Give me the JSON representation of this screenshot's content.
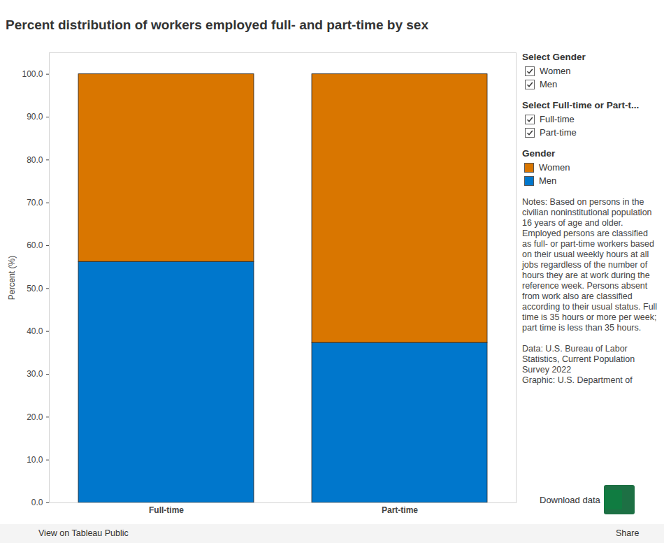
{
  "chart_data": {
    "type": "bar",
    "stacked": true,
    "title": "Percent distribution of workers employed full- and part-time by sex",
    "y_label": "Percent (%)",
    "categories": [
      "Full-time",
      "Part-time"
    ],
    "series": [
      {
        "name": "Women",
        "color": "#d97600",
        "values": [
          43.8,
          62.7
        ]
      },
      {
        "name": "Men",
        "color": "#0077cc",
        "values": [
          56.2,
          37.3
        ]
      }
    ],
    "ylim": [
      0,
      105
    ],
    "yticks": [
      {
        "value": 0,
        "label": "0.0"
      },
      {
        "value": 10,
        "label": "10.0"
      },
      {
        "value": 20,
        "label": "20.0"
      },
      {
        "value": 30,
        "label": "30.0"
      },
      {
        "value": 40,
        "label": "40.0"
      },
      {
        "value": 50,
        "label": "50.0"
      },
      {
        "value": 60,
        "label": "60.0"
      },
      {
        "value": 70,
        "label": "70.0"
      },
      {
        "value": 80,
        "label": "80.0"
      },
      {
        "value": 90,
        "label": "90.0"
      },
      {
        "value": 100,
        "label": "100.0"
      }
    ],
    "grid": false,
    "legend": "right"
  },
  "panel": {
    "filters": [
      {
        "title": "Select Gender",
        "options": [
          "Women",
          "Men"
        ]
      },
      {
        "title": "Select Full-time or Part-t...",
        "options": [
          "Full-time",
          "Part-time"
        ]
      }
    ],
    "legend_title": "Gender",
    "notes": "Notes: Based on persons in the civilian noninstitutional population 16 years of age and older. Employed persons are classified as full- or part-time workers based on their usual weekly hours at all jobs regardless of the number of hours they are at work during the reference week. Persons absent from work also are classified according to their usual status. Full time is 35 hours or more per week; part time is less than 35 hours.",
    "source": [
      "Data: U.S. Bureau of Labor Statistics, Current Population Survey 2022",
      "Graphic: U.S. Department of"
    ],
    "download": "Download data",
    "toolbar": [
      "View on Tableau Public",
      "Share"
    ]
  }
}
